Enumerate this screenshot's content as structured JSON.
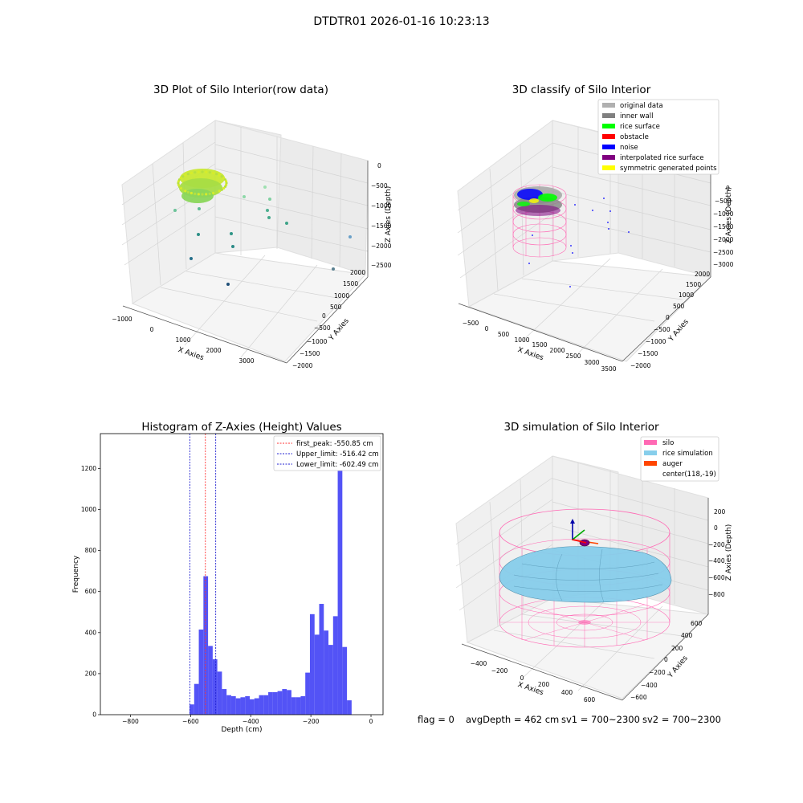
{
  "figure_title": "DTDTR01 2026-01-16 10:23:13",
  "footer": {
    "flag": "flag = 0",
    "avg_depth": "avgDepth = 462 cm",
    "sv1": "sv1 = 700~2300",
    "sv2": "sv2 = 700~2300"
  },
  "colors": {
    "hist_bar": "#4a4af5",
    "peak_line": "#ff3333",
    "limit_line": "#2020d0",
    "silo": "#ff69b4",
    "rice": "#87ceeb",
    "auger": "#ff4500",
    "rice_surface": "#00ff00",
    "noise": "#0000ff",
    "obstacle": "#ff0000",
    "interp": "#800080",
    "symmetric": "#ffff00",
    "original": "#b0b0b0",
    "inner_wall": "#808080"
  },
  "chart_data": [
    {
      "type": "scatter",
      "title": "3D Plot of Silo Interior(row data)",
      "xlabel": "X Axies",
      "ylabel": "Y Axies",
      "zlabel": "Z Axies (Depth)",
      "x_ticks": [
        "−1000",
        "0",
        "1000",
        "2000",
        "3000"
      ],
      "y_ticks": [
        "−2000",
        "−1500",
        "−1000",
        "−500",
        "0",
        "500",
        "1000",
        "1500",
        "2000"
      ],
      "z_ticks": [
        "0",
        "−500",
        "−1000",
        "−1500",
        "−2000",
        "−2500"
      ]
    },
    {
      "type": "scatter",
      "title": "3D classify of Silo Interior",
      "xlabel": "X Axies",
      "ylabel": "Y Axies",
      "zlabel": "Z Axies (Depth)",
      "x_ticks": [
        "−500",
        "0",
        "500",
        "1000",
        "1500",
        "2000",
        "2500",
        "3000",
        "3500"
      ],
      "y_ticks": [
        "−2000",
        "−1500",
        "−1000",
        "−500",
        "0",
        "500",
        "1000",
        "1500",
        "2000"
      ],
      "z_ticks": [
        "0",
        "−500",
        "−1000",
        "−1500",
        "−2000",
        "−2500",
        "−3000"
      ],
      "legend": [
        "original data",
        "inner wall",
        "rice surface",
        "obstacle",
        "noise",
        "interpolated rice surface",
        "symmetric generated points"
      ],
      "legend_position": "top-right"
    },
    {
      "type": "bar",
      "title": "Histogram of Z-Axies (Height) Values",
      "xlabel": "Depth (cm)",
      "ylabel": "Frequency",
      "xlim": [
        -900,
        40
      ],
      "ylim": [
        0,
        1370
      ],
      "x_ticks": [
        -800,
        -600,
        -400,
        -200,
        0
      ],
      "x_tick_labels": [
        "−800",
        "−600",
        "−400",
        "−200",
        "0"
      ],
      "y_ticks": [
        0,
        200,
        400,
        600,
        800,
        1000,
        1200
      ],
      "bin_start": -603.5,
      "bin_width": 15.4,
      "values": [
        50,
        150,
        415,
        675,
        335,
        270,
        210,
        125,
        95,
        90,
        80,
        85,
        90,
        75,
        80,
        95,
        95,
        110,
        110,
        115,
        125,
        120,
        85,
        85,
        90,
        205,
        490,
        390,
        540,
        410,
        340,
        480,
        1300,
        330,
        70
      ],
      "lines": [
        {
          "label": "first_peak: -550.85 cm",
          "x": -550.85,
          "color": "#ff3333"
        },
        {
          "label": "Upper_limit: -516.42 cm",
          "x": -516.42,
          "color": "#2020d0"
        },
        {
          "label": "Lower_limit: -602.49 cm",
          "x": -602.49,
          "color": "#2020d0"
        }
      ],
      "legend_position": "top-right"
    },
    {
      "type": "scatter",
      "title": "3D simulation of Silo Interior",
      "xlabel": "X Axies",
      "ylabel": "Y Axies",
      "zlabel": "Z Axies (Depth)",
      "x_ticks": [
        "−400",
        "−200",
        "0",
        "200",
        "400",
        "600"
      ],
      "y_ticks": [
        "−600",
        "−400",
        "−200",
        "0",
        "200",
        "400",
        "600"
      ],
      "z_ticks": [
        "200",
        "0",
        "−200",
        "−400",
        "−600",
        "−800"
      ],
      "legend": [
        "silo",
        "rice simulation",
        "auger",
        "center(118,-19)"
      ],
      "legend_position": "top-right"
    }
  ]
}
